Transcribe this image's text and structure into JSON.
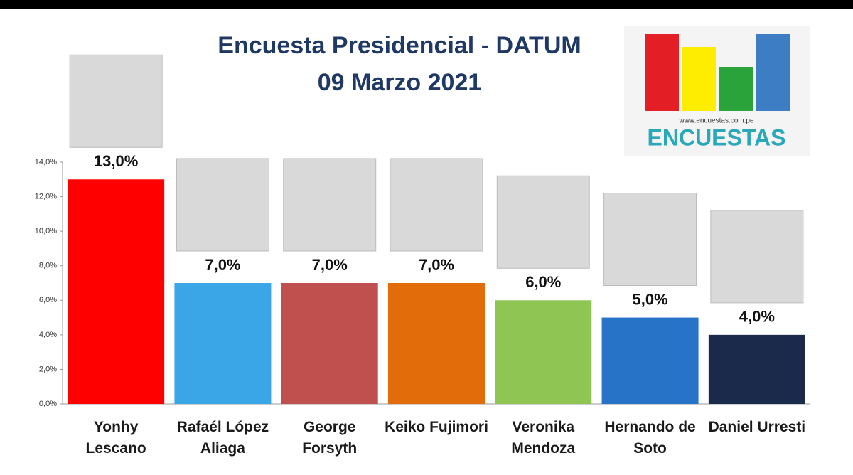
{
  "chart_data": {
    "type": "bar",
    "title": "Encuesta Presidencial - DATUM",
    "subtitle": "09 Marzo 2021",
    "categories": [
      "Yonhy Lescano",
      "Rafaél López Aliaga",
      "George Forsyth",
      "Keiko Fujimori",
      "Veronika Mendoza",
      "Hernando de Soto",
      "Daniel Urresti"
    ],
    "values": [
      13,
      7,
      7,
      7,
      6,
      5,
      4
    ],
    "value_labels": [
      "13,0%",
      "7,0%",
      "7,0%",
      "7,0%",
      "6,0%",
      "5,0%",
      "4,0%"
    ],
    "colors": [
      "#ff0000",
      "#3aa6e8",
      "#c0504d",
      "#e36c0a",
      "#8fc653",
      "#2673c7",
      "#1b2a4a"
    ],
    "ylim": [
      0,
      14
    ],
    "yticks": [
      {
        "value": 0,
        "label": "0,0%"
      },
      {
        "value": 2,
        "label": "2,0%"
      },
      {
        "value": 4,
        "label": "4,0%"
      },
      {
        "value": 6,
        "label": "6,0%"
      },
      {
        "value": 8,
        "label": "8,0%"
      },
      {
        "value": 10,
        "label": "10,0%"
      },
      {
        "value": 12,
        "label": "12,0%"
      },
      {
        "value": 14,
        "label": "14,0%"
      }
    ],
    "grid": false
  },
  "logo": {
    "url": "www.encuestas.com.pe",
    "name": "ENCUESTAS"
  }
}
